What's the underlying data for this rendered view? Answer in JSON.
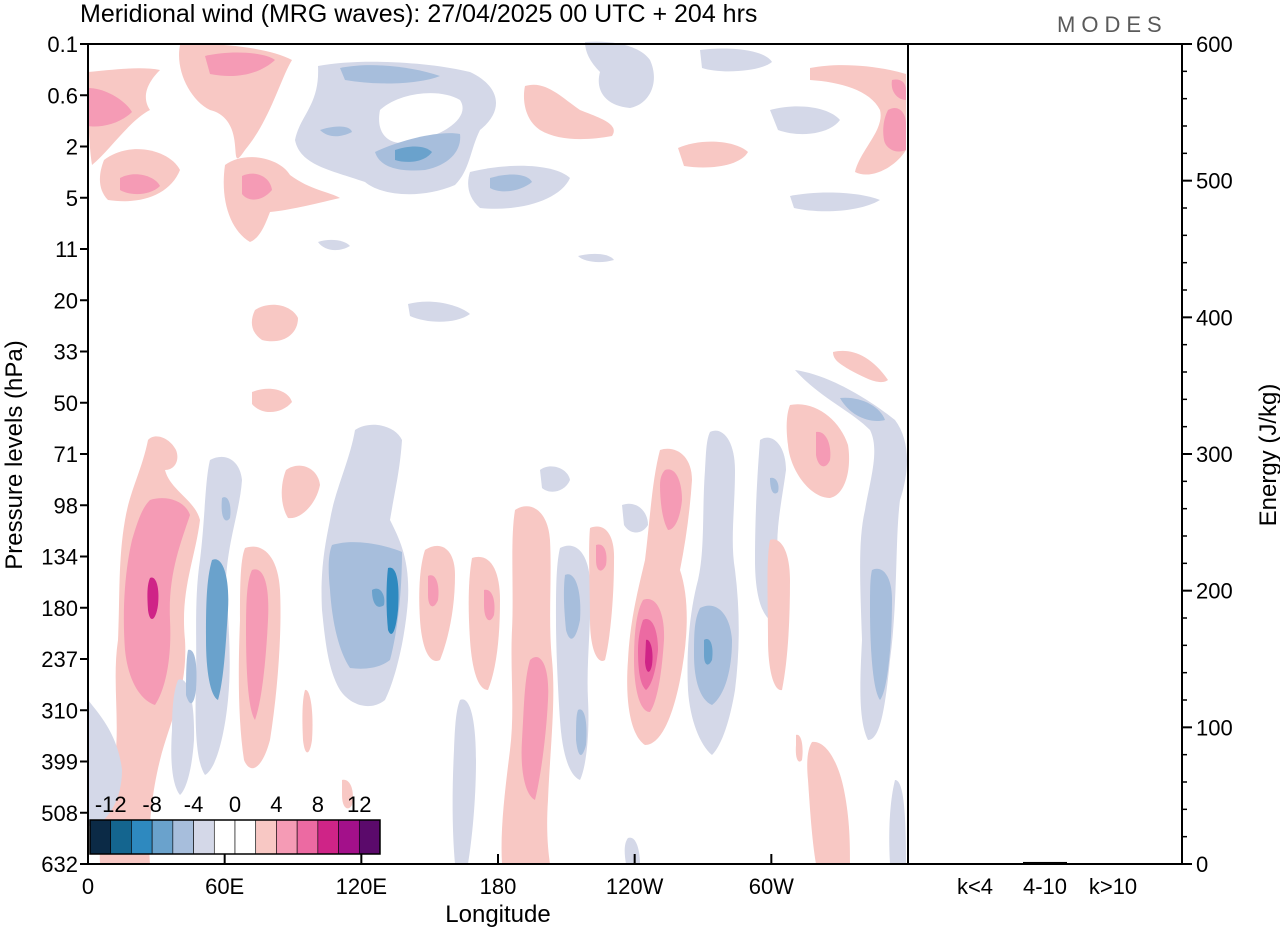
{
  "chart_data": {
    "type": "heatmap",
    "title": "Meridional wind (MRG waves):  27/04/2025  00 UTC  + 204 hrs",
    "brand": "MODES",
    "xlabel": "Longitude",
    "ylabel": "Pressure levels (hPa)",
    "x_ticks": [
      "0",
      "60E",
      "120E",
      "180",
      "120W",
      "60W"
    ],
    "y_ticks": [
      "0.1",
      "0.6",
      "2",
      "5",
      "11",
      "20",
      "33",
      "50",
      "71",
      "98",
      "134",
      "180",
      "237",
      "310",
      "399",
      "508",
      "632"
    ],
    "colorbar": {
      "labels": [
        "-12",
        "-8",
        "-4",
        "0",
        "4",
        "8",
        "12"
      ],
      "levels": [
        -14,
        -12,
        -10,
        -8,
        -6,
        -4,
        -2,
        0,
        2,
        4,
        6,
        8,
        10,
        12,
        14
      ],
      "colors": [
        "#0b2a46",
        "#14658f",
        "#2e89bf",
        "#6aa2cc",
        "#a7bedc",
        "#d4d8e8",
        "#ffffff",
        "#ffffff",
        "#f8c8c4",
        "#f59bb5",
        "#ec6aa2",
        "#cf2487",
        "#a3108a",
        "#5b0a6b"
      ]
    },
    "energy_panel": {
      "ylabel": "Energy (J/kg)",
      "y_ticks": [
        "0",
        "100",
        "200",
        "300",
        "400",
        "500",
        "600"
      ],
      "ylim": [
        0,
        600
      ],
      "categories": [
        "k<4",
        "4-10",
        "k>10"
      ],
      "values": [
        0.5,
        1.5,
        0.3
      ]
    }
  }
}
